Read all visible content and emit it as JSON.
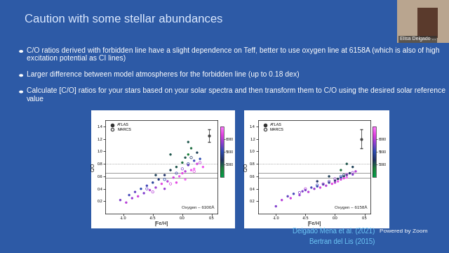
{
  "slide": {
    "title": "Caution with some stellar abundances",
    "bullets": [
      "C/O ratios derived with forbidden line have a slight dependence on Teff, better to use oxygen line at 6158A (which is also of high excitation potential as CI lines)",
      "Larger difference between model atmospheres for the forbidden line (up to 0.18 dex)",
      "Calculate [C/O] ratios for your stars based on your solar spectra and then transform them to C/O using the desired solar reference value"
    ],
    "references": [
      "Delgado Mena et al. (2021)",
      "Bertran del Lis (2015)"
    ]
  },
  "zoom": {
    "participant": "Elisa Delgado ...",
    "branding": "Powered by Zoom"
  },
  "chart_data": [
    {
      "type": "scatter",
      "xlabel": "[Fe/H]",
      "ylabel": "C/O",
      "annotation": "Oxygen – 6300Å",
      "xlim": [
        -1.3,
        0.6
      ],
      "ylim": [
        0.0,
        1.5
      ],
      "xticks": [
        -1.0,
        -0.5,
        0.0,
        0.5
      ],
      "yticks": [
        0.2,
        0.4,
        0.6,
        0.8,
        1.0,
        1.2,
        1.4
      ],
      "legend": "upper left",
      "series": [
        {
          "name": "ATLAS",
          "marker": "circle",
          "x": [
            -1.05,
            -0.95,
            -0.9,
            -0.85,
            -0.8,
            -0.75,
            -0.7,
            -0.65,
            -0.6,
            -0.55,
            -0.5,
            -0.45,
            -0.4,
            -0.35,
            -0.3,
            -0.25,
            -0.2,
            -0.15,
            -0.1,
            -0.05,
            0.0,
            0.0,
            0.05,
            0.05,
            0.1,
            0.1,
            0.15,
            0.15,
            0.2,
            0.2,
            0.25,
            0.25,
            0.3,
            0.35,
            -0.3,
            -0.1,
            0.05,
            -0.45,
            -0.2,
            0.1
          ],
          "y": [
            0.22,
            0.18,
            0.3,
            0.25,
            0.35,
            0.28,
            0.4,
            0.33,
            0.45,
            0.38,
            0.5,
            0.42,
            0.55,
            0.48,
            0.62,
            0.52,
            0.7,
            0.58,
            0.75,
            0.6,
            0.82,
            0.65,
            0.9,
            0.68,
            0.78,
            0.95,
            0.7,
            1.05,
            0.85,
            0.72,
            0.98,
            0.8,
            0.88,
            0.75,
            0.4,
            0.5,
            0.55,
            0.62,
            0.95,
            1.15
          ],
          "teff": [
            5800,
            6000,
            5600,
            5900,
            5700,
            6100,
            5500,
            5800,
            5600,
            6000,
            5400,
            5900,
            5300,
            6200,
            5200,
            6000,
            5100,
            6100,
            5000,
            6300,
            4900,
            6200,
            5000,
            6000,
            5800,
            4800,
            6300,
            4900,
            5600,
            6400,
            5100,
            6100,
            5500,
            6300,
            5900,
            6200,
            6400,
            5100,
            5000,
            5000
          ]
        },
        {
          "name": "MARCS",
          "marker": "open circle",
          "x": [
            -0.6,
            -0.3,
            -0.1,
            0.0,
            0.1,
            0.2,
            0.3,
            -0.2,
            0.15,
            -0.5
          ],
          "y": [
            0.4,
            0.55,
            0.65,
            0.72,
            0.8,
            0.68,
            0.82,
            0.48,
            0.9,
            0.35
          ],
          "teff": [
            5700,
            5500,
            5600,
            5800,
            5400,
            6200,
            6000,
            6100,
            5200,
            6000
          ]
        }
      ],
      "reference_lines": [
        {
          "value": 0.8,
          "line_style": "dotted"
        },
        {
          "value": 0.65,
          "line_style": "solid"
        },
        {
          "value": 0.58,
          "line_style": "solid"
        }
      ],
      "error_bar": {
        "x": 0.45,
        "y": 1.25,
        "yerr": 0.1
      },
      "colorbar": {
        "range": [
          4500,
          6500
        ],
        "ticks": [
          5000,
          5500,
          6000
        ]
      }
    },
    {
      "type": "scatter",
      "xlabel": "[Fe/H]",
      "ylabel": "C/O",
      "annotation": "Oxygen – 6158Å",
      "xlim": [
        -1.3,
        0.6
      ],
      "ylim": [
        0.0,
        1.5
      ],
      "xticks": [
        -1.0,
        -0.5,
        0.0,
        0.5
      ],
      "yticks": [
        0.2,
        0.4,
        0.6,
        0.8,
        1.0,
        1.2,
        1.4
      ],
      "legend": "upper left",
      "series": [
        {
          "name": "ATLAS",
          "marker": "circle",
          "x": [
            -1.0,
            -0.9,
            -0.8,
            -0.75,
            -0.7,
            -0.6,
            -0.55,
            -0.5,
            -0.45,
            -0.4,
            -0.35,
            -0.3,
            -0.25,
            -0.2,
            -0.15,
            -0.1,
            -0.05,
            0.0,
            0.0,
            0.05,
            0.05,
            0.1,
            0.1,
            0.15,
            0.15,
            0.2,
            0.2,
            0.25,
            0.3,
            0.35,
            0.3,
            0.1,
            -0.1,
            0.2,
            -0.3
          ],
          "y": [
            0.12,
            0.22,
            0.28,
            0.25,
            0.32,
            0.3,
            0.36,
            0.38,
            0.35,
            0.42,
            0.4,
            0.44,
            0.42,
            0.47,
            0.45,
            0.5,
            0.48,
            0.53,
            0.5,
            0.56,
            0.52,
            0.58,
            0.55,
            0.6,
            0.57,
            0.62,
            0.58,
            0.65,
            0.63,
            0.68,
            0.75,
            0.7,
            0.6,
            0.8,
            0.52
          ],
          "teff": [
            5800,
            6000,
            5700,
            6100,
            5600,
            5900,
            5800,
            5700,
            6000,
            5600,
            5900,
            5500,
            6100,
            5400,
            6000,
            5300,
            6200,
            5200,
            6000,
            5100,
            6300,
            5400,
            6100,
            5000,
            6200,
            5300,
            6400,
            5200,
            5800,
            6000,
            5100,
            4900,
            5100,
            5000,
            5200
          ]
        },
        {
          "name": "MARCS",
          "marker": "open circle",
          "x": [
            -0.6,
            -0.3,
            -0.1,
            0.0,
            0.1,
            0.2,
            0.3,
            -0.2,
            0.15,
            -0.5
          ],
          "y": [
            0.34,
            0.46,
            0.52,
            0.56,
            0.6,
            0.63,
            0.66,
            0.48,
            0.62,
            0.4
          ],
          "teff": [
            5800,
            5600,
            5700,
            5900,
            5500,
            6100,
            5900,
            6000,
            5300,
            6000
          ]
        }
      ],
      "reference_lines": [
        {
          "value": 0.8,
          "line_style": "dotted"
        },
        {
          "value": 0.66,
          "line_style": "solid"
        },
        {
          "value": 0.58,
          "line_style": "solid"
        }
      ],
      "error_bar": {
        "x": 0.45,
        "y": 1.2,
        "yerr": 0.15
      },
      "colorbar": {
        "range": [
          4500,
          6500
        ],
        "ticks": [
          5000,
          5500,
          6000
        ]
      }
    }
  ]
}
